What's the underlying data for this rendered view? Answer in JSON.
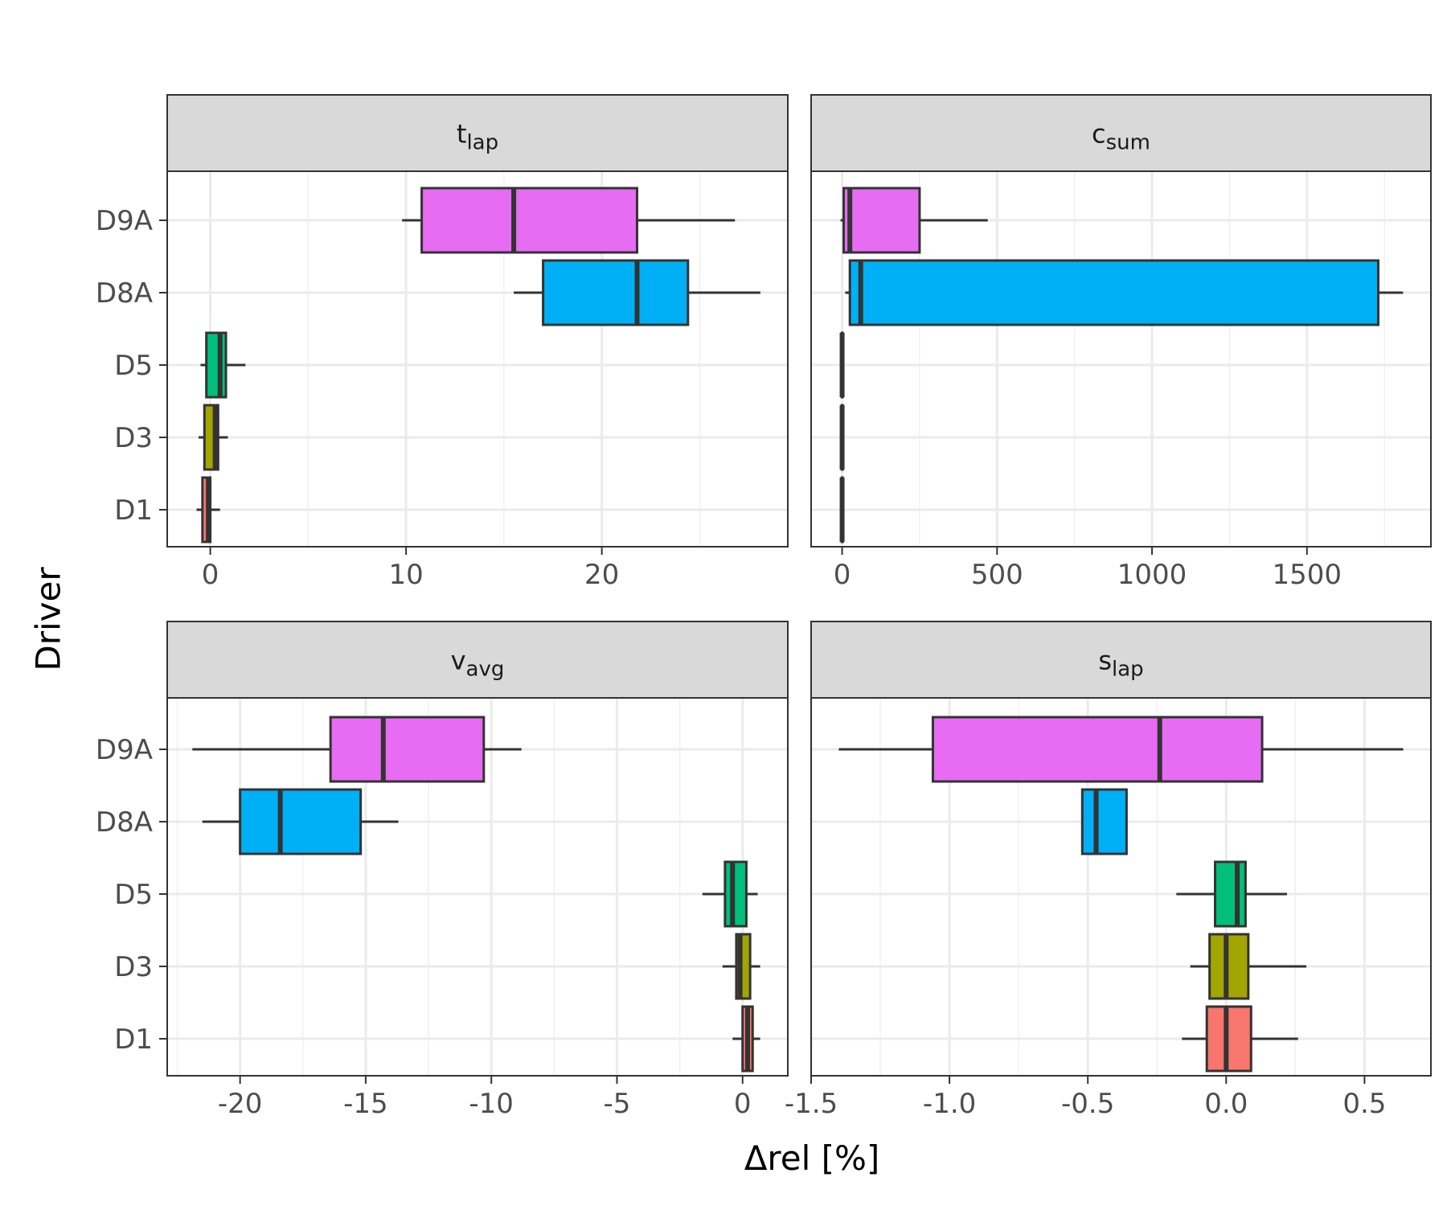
{
  "chart_data": {
    "type": "boxplot",
    "orientation": "horizontal",
    "xlabel": "Δrel [%]",
    "ylabel": "Driver",
    "categories": [
      "D9A",
      "D8A",
      "D5",
      "D3",
      "D1"
    ],
    "fills": {
      "D9A": "#E76BF3",
      "D8A": "#00B0F6",
      "D5": "#00BF7D",
      "D3": "#A3A500",
      "D1": "#F8766D"
    },
    "panels": [
      {
        "id": "t_lap",
        "title": "t",
        "subscript": "lap",
        "xlim": [
          -2.2,
          29.5
        ],
        "xticks": [
          0,
          10,
          20
        ],
        "xtick_labels": [
          "0",
          "10",
          "20"
        ],
        "minor_breaks": [
          5,
          15,
          25
        ],
        "boxes": [
          {
            "driver": "D9A",
            "whislo": 9.8,
            "q1": 10.8,
            "med": 15.5,
            "q3": 21.8,
            "whishi": 26.8
          },
          {
            "driver": "D8A",
            "whislo": 15.5,
            "q1": 17.0,
            "med": 21.8,
            "q3": 24.4,
            "whishi": 28.1
          },
          {
            "driver": "D5",
            "whislo": -0.5,
            "q1": -0.2,
            "med": 0.5,
            "q3": 0.8,
            "whishi": 1.8
          },
          {
            "driver": "D3",
            "whislo": -0.6,
            "q1": -0.3,
            "med": 0.25,
            "q3": 0.4,
            "whishi": 0.9
          },
          {
            "driver": "D1",
            "whislo": -0.7,
            "q1": -0.4,
            "med": -0.1,
            "q3": 0.0,
            "whishi": 0.5
          }
        ]
      },
      {
        "id": "c_sum",
        "title": "c",
        "subscript": "sum",
        "xlim": [
          -100,
          1900
        ],
        "xticks": [
          0,
          500,
          1000,
          1500
        ],
        "xtick_labels": [
          "0",
          "500",
          "1000",
          "1500"
        ],
        "minor_breaks": [
          250,
          750,
          1250,
          1750
        ],
        "boxes": [
          {
            "driver": "D9A",
            "whislo": -5,
            "q1": 5,
            "med": 25,
            "q3": 250,
            "whishi": 470
          },
          {
            "driver": "D8A",
            "whislo": 10,
            "q1": 25,
            "med": 60,
            "q3": 1730,
            "whishi": 1810
          },
          {
            "driver": "D5",
            "whislo": -2,
            "q1": -1,
            "med": 0,
            "q3": 1,
            "whishi": 2
          },
          {
            "driver": "D3",
            "whislo": -2,
            "q1": -1,
            "med": 0,
            "q3": 1,
            "whishi": 2
          },
          {
            "driver": "D1",
            "whislo": -2,
            "q1": -1,
            "med": 0,
            "q3": 1,
            "whishi": 2
          }
        ]
      },
      {
        "id": "v_avg",
        "title": "v",
        "subscript": "avg",
        "xlim": [
          -22.9,
          1.8
        ],
        "xticks": [
          -20,
          -15,
          -10,
          -5,
          0
        ],
        "xtick_labels": [
          "-20",
          "-15",
          "-10",
          "-5",
          "0"
        ],
        "minor_breaks": [
          -22.5,
          -17.5,
          -12.5,
          -7.5,
          -2.5
        ],
        "boxes": [
          {
            "driver": "D9A",
            "whislo": -21.9,
            "q1": -16.4,
            "med": -14.3,
            "q3": -10.3,
            "whishi": -8.8
          },
          {
            "driver": "D8A",
            "whislo": -21.5,
            "q1": -20.0,
            "med": -18.4,
            "q3": -15.2,
            "whishi": -13.7
          },
          {
            "driver": "D5",
            "whislo": -1.6,
            "q1": -0.7,
            "med": -0.4,
            "q3": 0.15,
            "whishi": 0.6
          },
          {
            "driver": "D3",
            "whislo": -0.8,
            "q1": -0.25,
            "med": -0.1,
            "q3": 0.3,
            "whishi": 0.7
          },
          {
            "driver": "D1",
            "whislo": -0.4,
            "q1": 0.0,
            "med": 0.2,
            "q3": 0.4,
            "whishi": 0.7
          }
        ]
      },
      {
        "id": "s_lap",
        "title": "s",
        "subscript": "lap",
        "xlim": [
          -1.5,
          0.74
        ],
        "xticks": [
          -1.5,
          -1.0,
          -0.5,
          0.0,
          0.5
        ],
        "xtick_labels": [
          "-1.5",
          "-1.0",
          "-0.5",
          "0.0",
          "0.5"
        ],
        "minor_breaks": [
          -1.25,
          -0.75,
          -0.25,
          0.25
        ],
        "boxes": [
          {
            "driver": "D9A",
            "whislo": -1.4,
            "q1": -1.06,
            "med": -0.24,
            "q3": 0.13,
            "whishi": 0.64
          },
          {
            "driver": "D8A",
            "whislo": -0.52,
            "q1": -0.52,
            "med": -0.47,
            "q3": -0.36,
            "whishi": -0.36
          },
          {
            "driver": "D5",
            "whislo": -0.18,
            "q1": -0.04,
            "med": 0.04,
            "q3": 0.07,
            "whishi": 0.22
          },
          {
            "driver": "D3",
            "whislo": -0.13,
            "q1": -0.06,
            "med": 0.0,
            "q3": 0.08,
            "whishi": 0.29
          },
          {
            "driver": "D1",
            "whislo": -0.16,
            "q1": -0.07,
            "med": 0.0,
            "q3": 0.09,
            "whishi": 0.26
          }
        ]
      }
    ]
  }
}
